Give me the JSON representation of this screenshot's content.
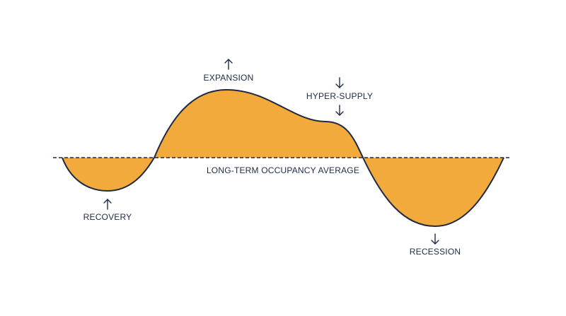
{
  "diagram": {
    "labels": {
      "expansion": "EXPANSION",
      "hyper_supply": "HYPER-SUPPLY",
      "average": "LONG-TERM OCCUPANCY AVERAGE",
      "recovery": "RECOVERY",
      "recession": "RECESSION"
    }
  }
}
